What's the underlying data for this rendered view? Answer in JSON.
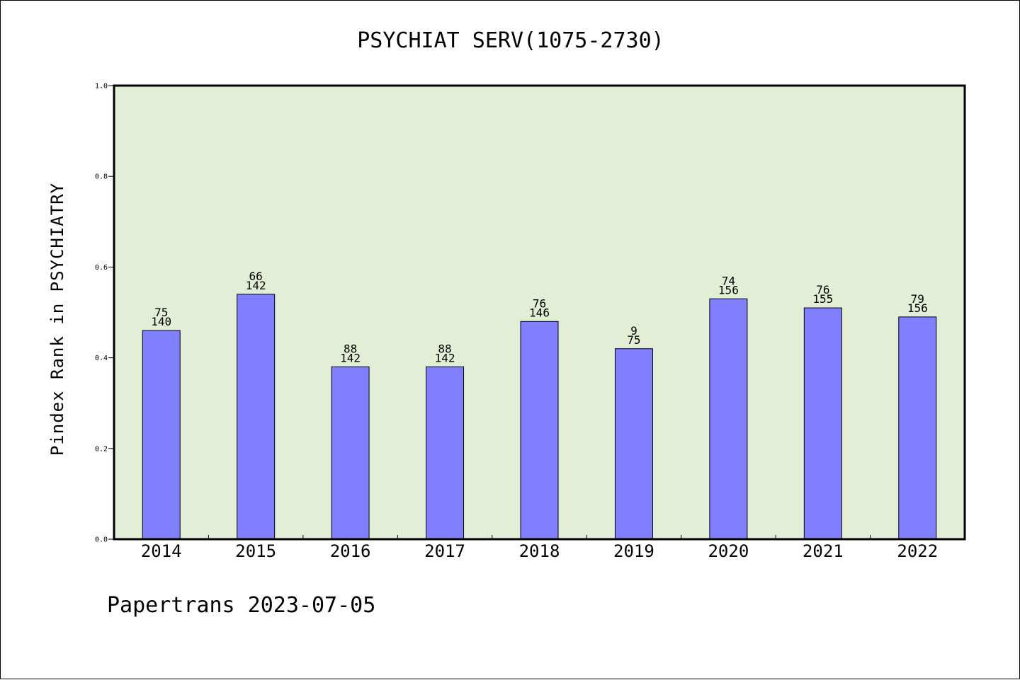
{
  "chart_data": {
    "type": "bar",
    "title": "PSYCHIAT SERV(1075-2730)",
    "xlabel": "",
    "ylabel": "Pindex Rank in PSYCHIATRY",
    "ylim": [
      0,
      1.0
    ],
    "yticks": [
      "0.0",
      "0.2",
      "0.4",
      "0.6",
      "0.8",
      "1.0"
    ],
    "categories": [
      "2014",
      "2015",
      "2016",
      "2017",
      "2018",
      "2019",
      "2020",
      "2021",
      "2022"
    ],
    "values": [
      0.46,
      0.54,
      0.38,
      0.38,
      0.48,
      0.42,
      0.53,
      0.51,
      0.49
    ],
    "labels_top": [
      "75",
      "66",
      "88",
      "88",
      "76",
      "9",
      "74",
      "76",
      "79"
    ],
    "labels_bottom": [
      "140",
      "142",
      "142",
      "142",
      "146",
      "75",
      "156",
      "155",
      "156"
    ],
    "grid": false,
    "legend": "none",
    "colors": {
      "plot_bg": "#e2efd6",
      "bar": "#8080ff",
      "bar_edge": "#000000"
    }
  },
  "footer": "Papertrans 2023-07-05"
}
